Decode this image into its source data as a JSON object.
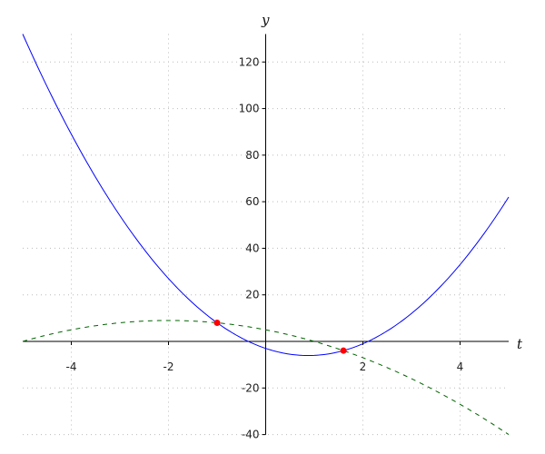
{
  "chart_data": {
    "type": "line",
    "title": "",
    "xlabel": "t",
    "ylabel": "y",
    "xlim": [
      -5,
      5
    ],
    "ylim": [
      -40,
      132
    ],
    "grid": true,
    "x_ticks": [
      -4,
      -2,
      2,
      4
    ],
    "y_ticks": [
      -40,
      -20,
      20,
      40,
      60,
      80,
      100,
      120
    ],
    "series": [
      {
        "color": "#0000ff",
        "style": "solid",
        "expression": "4t^2 - 7t - 3",
        "x": [
          -5,
          -4,
          -3,
          -2,
          -1,
          0,
          0.875,
          1,
          2,
          3,
          4,
          5
        ],
        "y": [
          132,
          89,
          54,
          27,
          8,
          -3,
          -6.06,
          -6,
          -1,
          12,
          33,
          62
        ]
      },
      {
        "color": "#006400",
        "style": "dashed",
        "expression": "-t^2 - 4t + 5",
        "x": [
          -5,
          -4,
          -3,
          -2,
          -1,
          0,
          1,
          2,
          3,
          4,
          5
        ],
        "y": [
          0,
          5,
          8,
          9,
          8,
          5,
          0,
          -7,
          -16,
          -27,
          -40
        ]
      }
    ],
    "points": [
      {
        "x": -1,
        "y": 8,
        "color": "#ff0000"
      },
      {
        "x": 1.6,
        "y": -3.96,
        "color": "#ff0000"
      }
    ]
  }
}
